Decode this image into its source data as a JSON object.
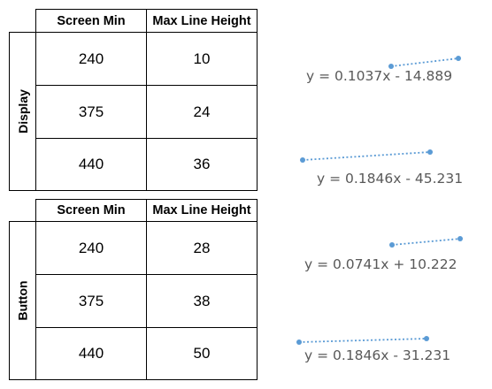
{
  "tables": [
    {
      "label": "Display",
      "headers": [
        "Screen Min",
        "Max Line Height"
      ],
      "rows": [
        [
          "240",
          "10"
        ],
        [
          "375",
          "24"
        ],
        [
          "440",
          "36"
        ]
      ]
    },
    {
      "label": "Button",
      "headers": [
        "Screen Min",
        "Max Line Height"
      ],
      "rows": [
        [
          "240",
          "28"
        ],
        [
          "375",
          "38"
        ],
        [
          "440",
          "50"
        ]
      ]
    }
  ],
  "trendlines": [
    {
      "equation": "y = 0.1037x - 14.889"
    },
    {
      "equation": "y = 0.1846x - 45.231"
    },
    {
      "equation": "y = 0.0741x + 10.222"
    },
    {
      "equation": "y = 0.1846x - 31.231"
    }
  ],
  "colors": {
    "trendline": "#5b9bd5",
    "equation_text": "#595959",
    "border": "#000000"
  }
}
